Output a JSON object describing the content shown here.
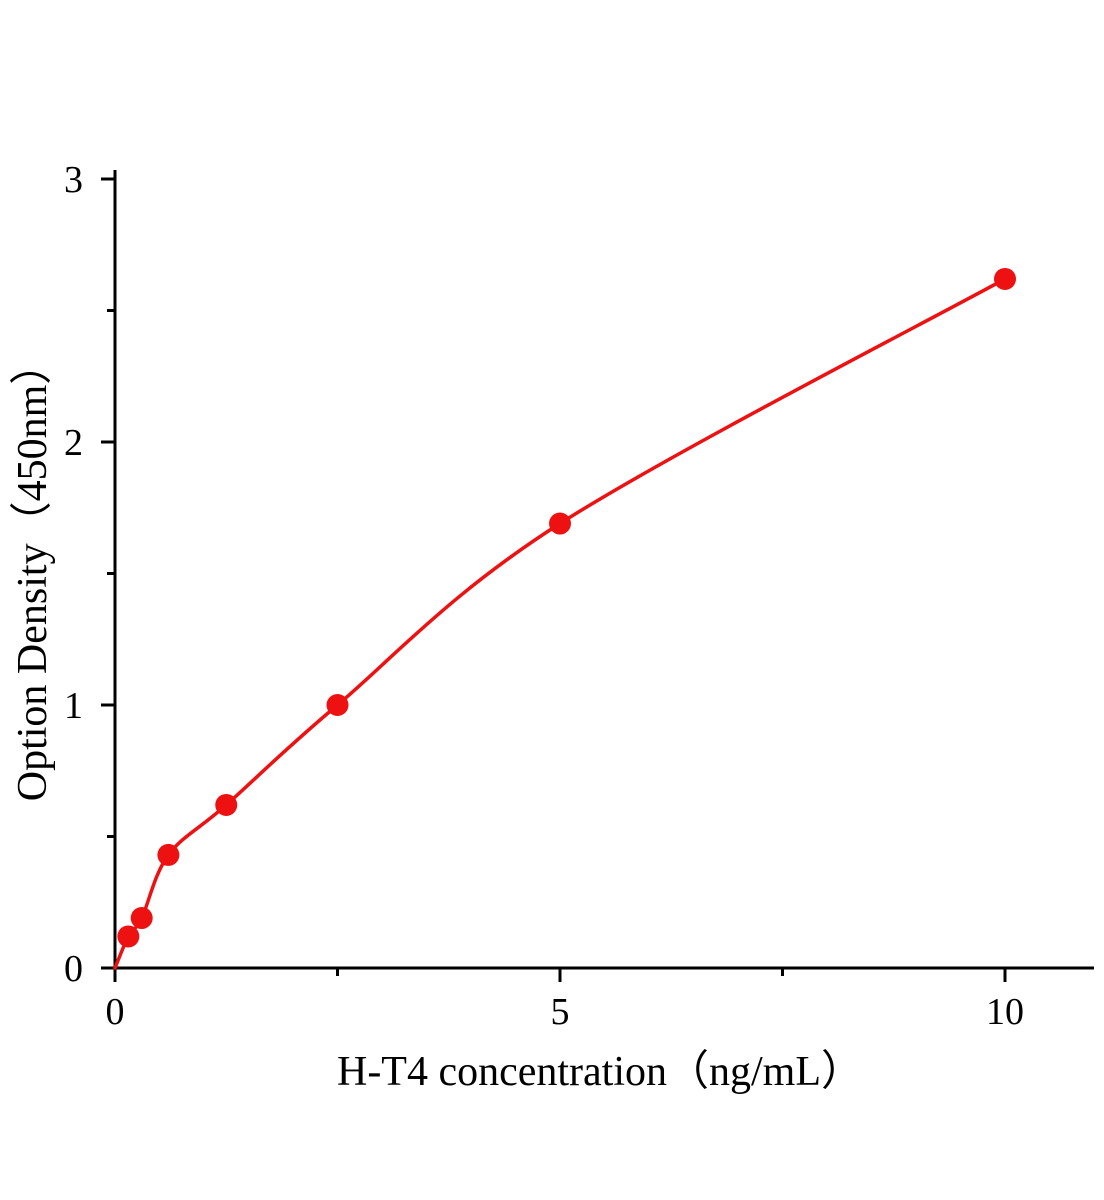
{
  "page": {
    "background": "#ffffff"
  },
  "chart_data": {
    "type": "scatter",
    "title": "",
    "xlabel": "H-T4 concentration（ng/mL）",
    "ylabel": "Option Density（450nm）",
    "x": [
      0.15,
      0.3,
      0.6,
      1.25,
      2.5,
      5,
      10
    ],
    "y": [
      0.12,
      0.19,
      0.43,
      0.62,
      1.0,
      1.69,
      2.62
    ],
    "curve_start": {
      "x": 0,
      "y": 0
    },
    "curve_style": "smooth-through-points",
    "xlim": [
      0,
      11
    ],
    "ylim": [
      0,
      3
    ],
    "x_major_ticks": [
      0,
      5,
      10
    ],
    "x_minor_ticks": [
      2.5,
      7.5
    ],
    "y_major_ticks": [
      0,
      1,
      2,
      3
    ],
    "y_minor_ticks": [
      0.5,
      1.5,
      2.5
    ],
    "marker_color": "#ee1111",
    "line_color": "#ee1111",
    "axis_color": "#000000",
    "grid": false,
    "legend": "none"
  }
}
